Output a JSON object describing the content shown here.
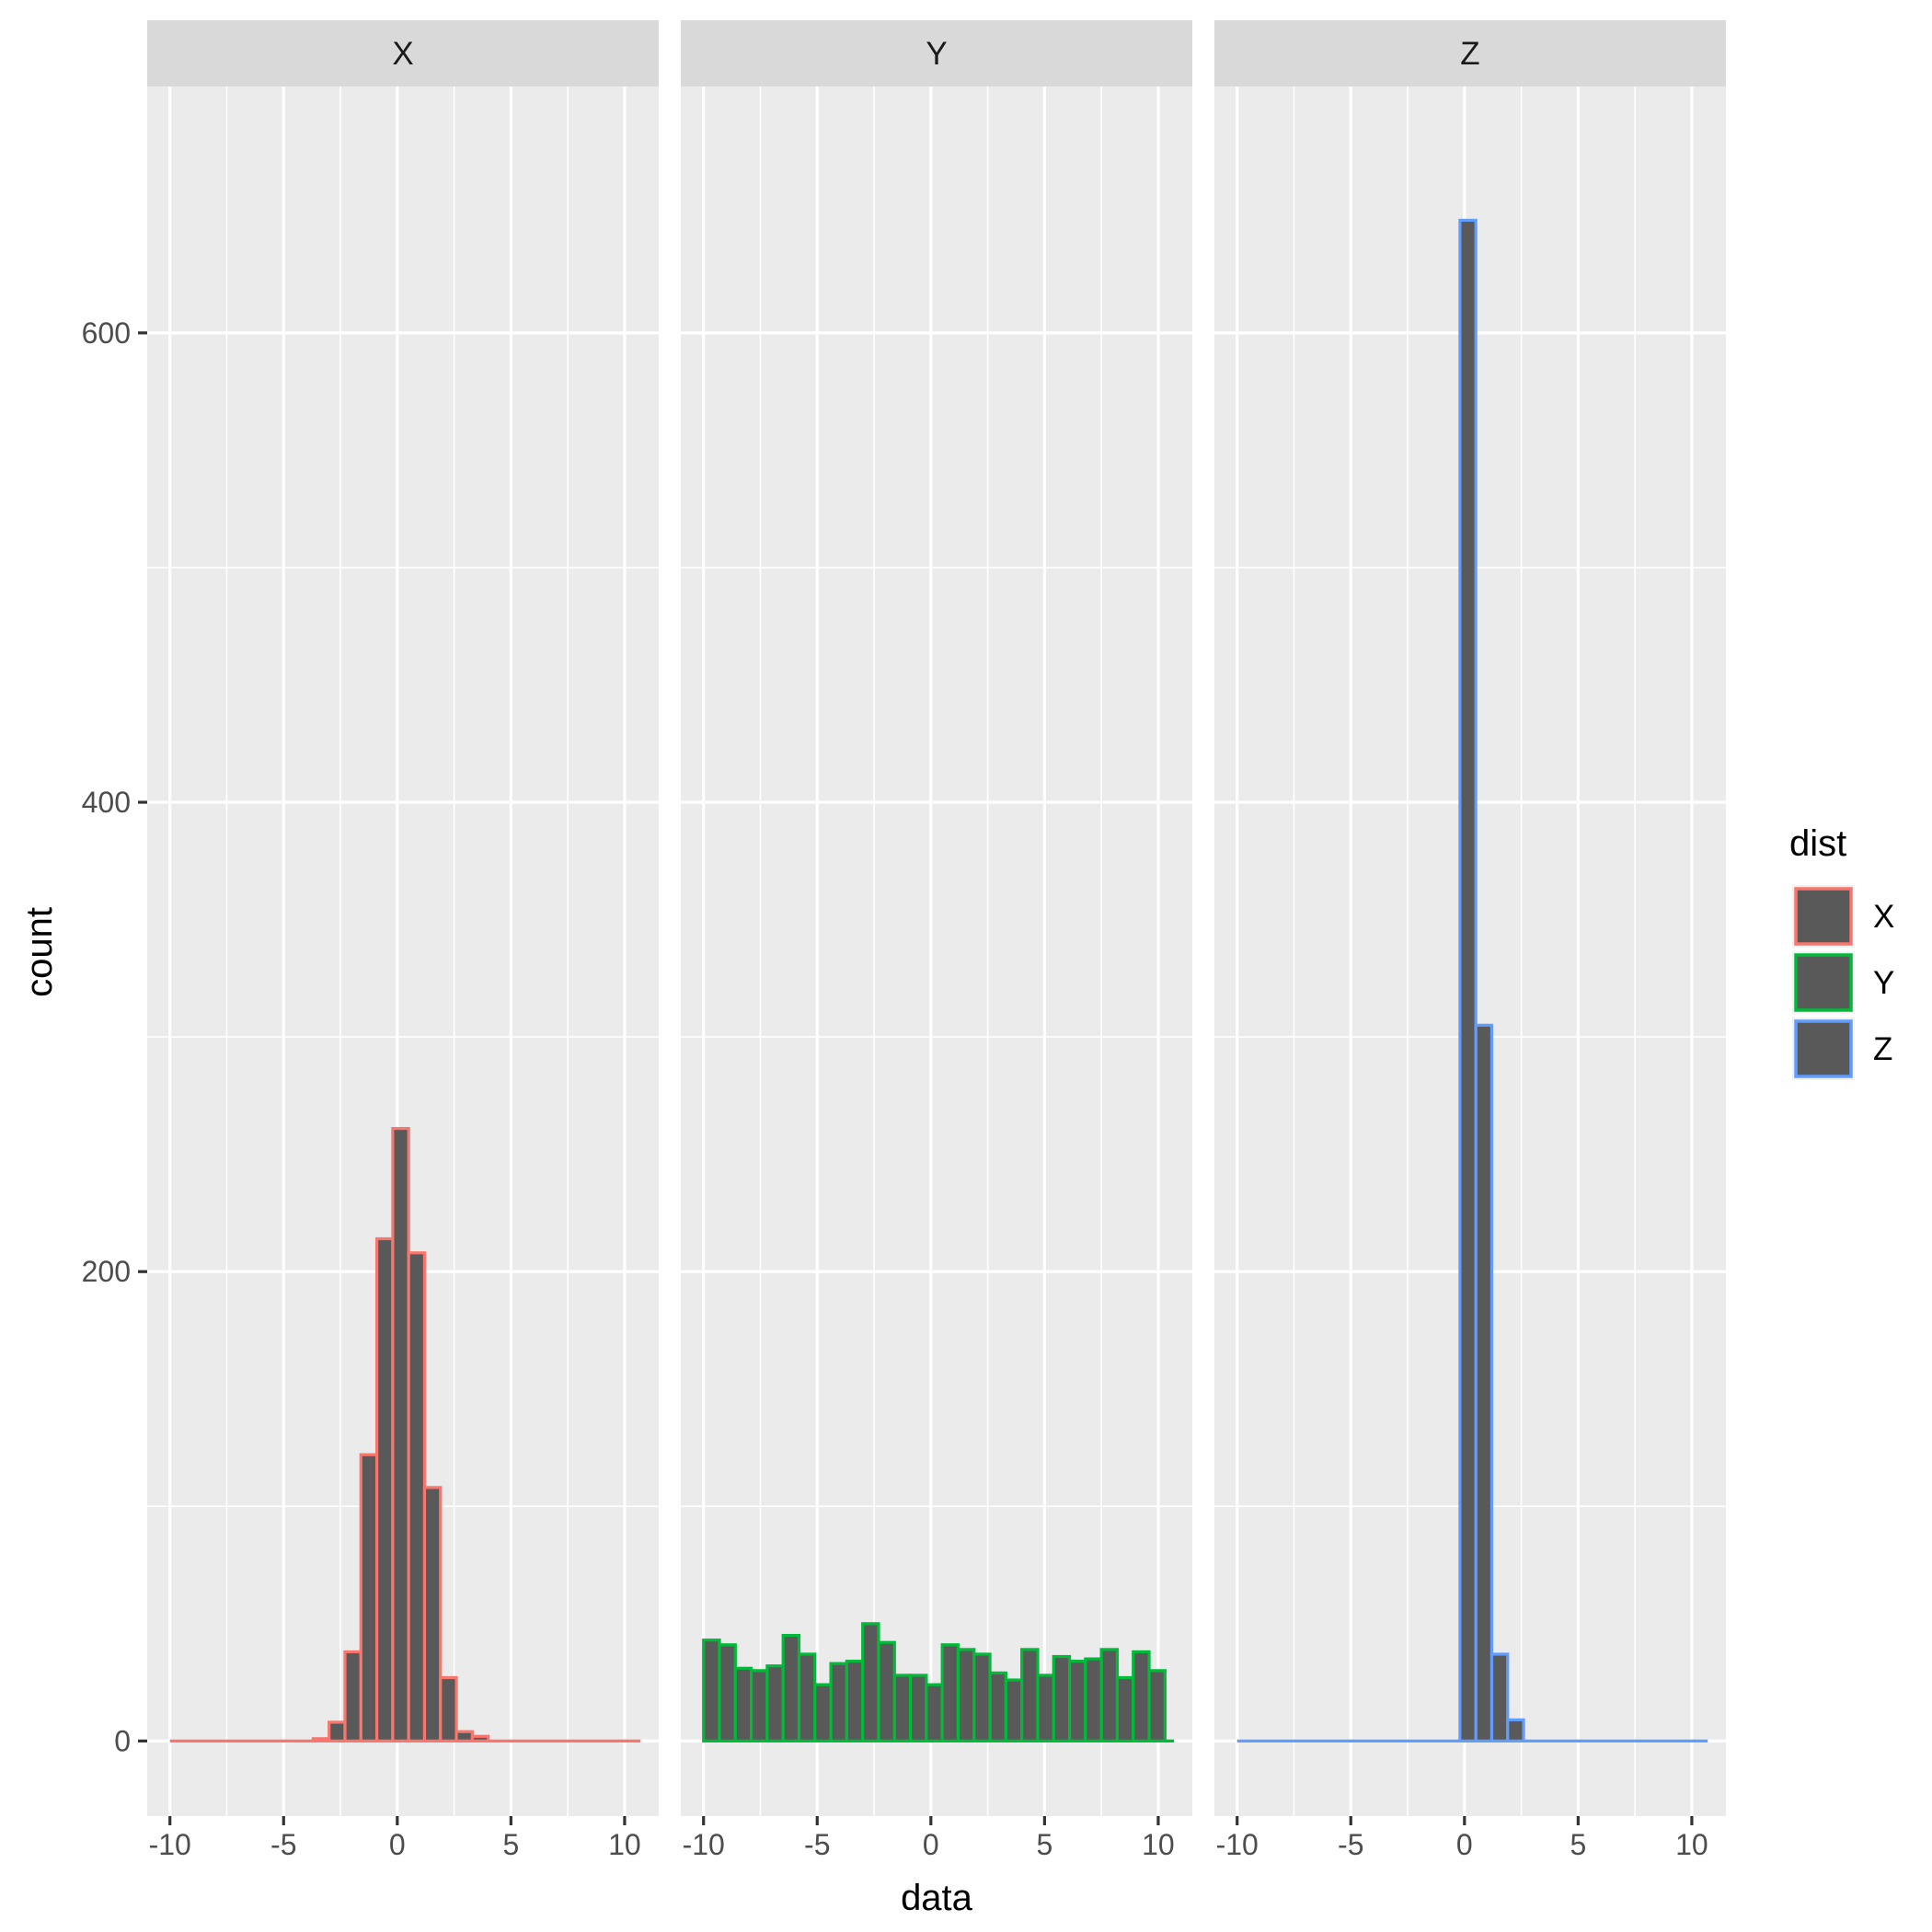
{
  "chart_data": {
    "type": "bar",
    "subtype": "faceted-histogram",
    "xlabel": "data",
    "ylabel": "count",
    "xlim": [
      -11,
      11.5
    ],
    "ylim": [
      -32,
      705
    ],
    "x_ticks": [
      -10,
      -5,
      0,
      5,
      10
    ],
    "x_tick_labels": [
      "-10",
      "-5",
      "0",
      "5",
      "10"
    ],
    "y_ticks": [
      0,
      200,
      400,
      600
    ],
    "y_tick_labels": [
      "0",
      "200",
      "400",
      "600"
    ],
    "grid": true,
    "bin_width": 0.7,
    "panels": [
      {
        "strip": "X",
        "color": "#F8766D",
        "x_start": -10.0,
        "counts": [
          0,
          0,
          0,
          0,
          0,
          0,
          0,
          0,
          0,
          1,
          8,
          38,
          122,
          214,
          261,
          208,
          108,
          27,
          4,
          2,
          0,
          0,
          0,
          0,
          0,
          0,
          0,
          0,
          0,
          0,
          0
        ],
        "line_extends_to": 10.7
      },
      {
        "strip": "Y",
        "color": "#00BA38",
        "x_start": -10.0,
        "counts": [
          43,
          41,
          31,
          30,
          32,
          45,
          37,
          24,
          33,
          34,
          50,
          42,
          28,
          28,
          24,
          41,
          39,
          37,
          29,
          26,
          39,
          28,
          36,
          34,
          35,
          39,
          27,
          38,
          30
        ],
        "line_extends_to": 10.7
      },
      {
        "strip": "Z",
        "color": "#619CFF",
        "x_start": -10.0,
        "counts": [
          0,
          0,
          0,
          0,
          0,
          0,
          0,
          0,
          0,
          0,
          0,
          0,
          0,
          0,
          648,
          305,
          37,
          9,
          0,
          0,
          0,
          0,
          0,
          0,
          0,
          0,
          0,
          0,
          0,
          0,
          0
        ],
        "line_extends_to": 10.7
      }
    ],
    "legend": {
      "title": "dist",
      "position": "right",
      "entries": [
        {
          "label": "X",
          "color": "#F8766D"
        },
        {
          "label": "Y",
          "color": "#00BA38"
        },
        {
          "label": "Z",
          "color": "#619CFF"
        }
      ]
    },
    "bar_fill": "#595959",
    "panel_background": "#ebebeb"
  }
}
